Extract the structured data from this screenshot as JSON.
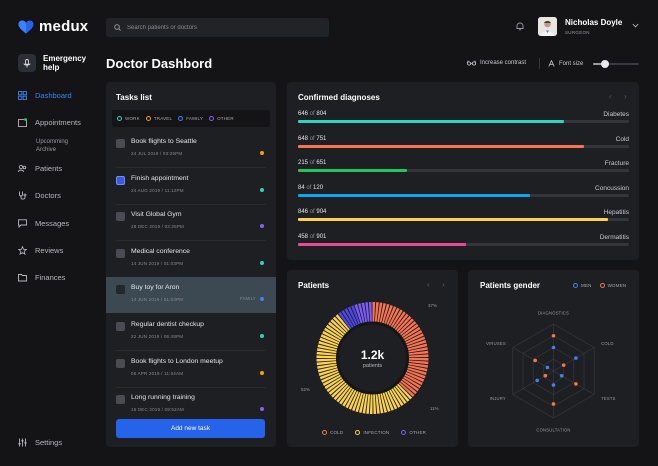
{
  "app": {
    "name": "medux"
  },
  "colors": {
    "accent": "#3b82f6",
    "teal": "#2dd4bf",
    "orange": "#f97350",
    "green": "#22c55e",
    "blue": "#0ea5e9",
    "yellow": "#fcd34d",
    "pink": "#ec4899",
    "purple": "#7c5cff"
  },
  "sidebar": {
    "emergency": "Emergency help",
    "items": [
      {
        "label": "Dashboard",
        "icon": "grid-icon"
      },
      {
        "label": "Appointments",
        "icon": "calendar-icon"
      },
      {
        "label": "Patients",
        "icon": "users-icon"
      },
      {
        "label": "Doctors",
        "icon": "stethoscope-icon"
      },
      {
        "label": "Messages",
        "icon": "chat-icon"
      },
      {
        "label": "Reviews",
        "icon": "star-icon"
      },
      {
        "label": "Finances",
        "icon": "folder-icon"
      }
    ],
    "sub_item": "Upcomming Archive",
    "settings": "Settings"
  },
  "header": {
    "search_placeholder": "Search patients or doctors",
    "user_name": "Nicholas Doyle",
    "user_role": "SURGEON",
    "page_title": "Doctor Dashbord",
    "contrast_label": "Increase contrast",
    "font_size_label": "Font size",
    "font_size_level": 0.25
  },
  "tasks": {
    "title": "Tasks list",
    "filters": [
      {
        "label": "WORK",
        "color": "#2dd4bf"
      },
      {
        "label": "TRAVEL",
        "color": "#f59e0b"
      },
      {
        "label": "FAMILY",
        "color": "#3b82f6"
      },
      {
        "label": "OTHER",
        "color": "#8b5cf6"
      }
    ],
    "items": [
      {
        "title": "Book flights to Seattle",
        "date": "24 JUL 2019  /  03:25PM",
        "color": "#f59e0b",
        "tag": ""
      },
      {
        "title": "Finish appointment",
        "date": "24 AUG 2019  /  11:12PM",
        "color": "#2dd4bf",
        "tag": ""
      },
      {
        "title": "Visit Global Gym",
        "date": "28 DEC 2019  /  03:25PM",
        "color": "#8b5cf6",
        "tag": ""
      },
      {
        "title": "Medical conference",
        "date": "14 JUN 2019  /  01:03PM",
        "color": "#2dd4bf",
        "tag": ""
      },
      {
        "title": "Buy toy for Aron",
        "date": "14 JUN 2019  /  01:03PM",
        "color": "#3b82f6",
        "tag": "FAMILY"
      },
      {
        "title": "Regular dentist checkup",
        "date": "22 JUN 2019  /  06:48PM",
        "color": "#2dd4bf",
        "tag": ""
      },
      {
        "title": "Book flights to London meetup",
        "date": "06 APR 2019  /  11:04AM",
        "color": "#f59e0b",
        "tag": ""
      },
      {
        "title": "Long running training",
        "date": "16 DEC 2019  /  09:52AM",
        "color": "#8b5cf6",
        "tag": ""
      }
    ],
    "add_label": "Add new task"
  },
  "diagnoses": {
    "title": "Confirmed diagnoses",
    "of_word": "of",
    "items": [
      {
        "value": 646,
        "total": 804,
        "name": "Diabetes",
        "color": "#2dd4bf"
      },
      {
        "value": 648,
        "total": 751,
        "name": "Cold",
        "color": "#f97350"
      },
      {
        "value": 215,
        "total": 651,
        "name": "Fracture",
        "color": "#22c55e"
      },
      {
        "value": 84,
        "total": 120,
        "name": "Concussion",
        "color": "#0ea5e9"
      },
      {
        "value": 846,
        "total": 904,
        "name": "Hepatitis",
        "color": "#fcd34d"
      },
      {
        "value": 458,
        "total": 901,
        "name": "Dermatitis",
        "color": "#ec4899"
      }
    ]
  },
  "patients": {
    "title": "Patients",
    "center_value": "1.2k",
    "center_label": "patients",
    "chart_data": {
      "type": "pie",
      "slices": [
        {
          "name": "COLD",
          "value": 37,
          "color": "#f97350"
        },
        {
          "name": "INFECTION",
          "value": 52,
          "color": "#fcd34d"
        },
        {
          "name": "OTHER",
          "value": 11,
          "color": "#7c5cff"
        }
      ]
    },
    "pct_labels": [
      "37%",
      "52%",
      "11%"
    ]
  },
  "gender": {
    "title": "Patients gender",
    "legend": [
      {
        "label": "MEN",
        "color": "#3b82f6"
      },
      {
        "label": "WOMEN",
        "color": "#f97350"
      }
    ],
    "axes": [
      "DIAGNOSTICS",
      "COLD",
      "TESTS",
      "CONSULTATION",
      "INJURY",
      "VIRUSES"
    ],
    "men": [
      0.5,
      0.55,
      0.2,
      0.3,
      0.4,
      0.15
    ],
    "women": [
      0.75,
      0.25,
      0.55,
      0.7,
      0.2,
      0.45
    ]
  }
}
